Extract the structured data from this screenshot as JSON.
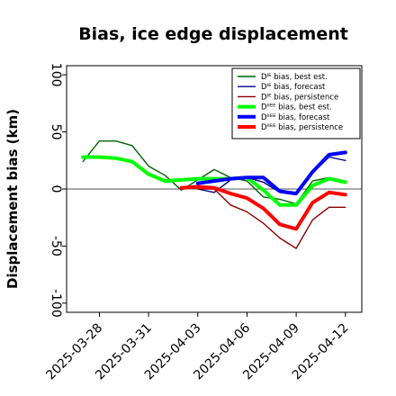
{
  "chart_data": {
    "type": "line",
    "title": "Bias, ice edge displacement",
    "xlabel": "",
    "ylabel": "Displacement bias (km)",
    "ylim": [
      -108,
      108
    ],
    "yticks": [
      -100,
      -50,
      0,
      50,
      100
    ],
    "x_range": [
      "2025-03-26",
      "2025-04-13"
    ],
    "xticks": [
      "2025-03-28",
      "2025-03-31",
      "2025-04-03",
      "2025-04-06",
      "2025-04-09",
      "2025-04-12"
    ],
    "highlight_tick": "2025-04-03",
    "highlight_color": "#228b22",
    "zero_line": true,
    "legend_position": "top-right",
    "series": [
      {
        "name": "Dᴵᴱ bias, best est.",
        "color": "#006400",
        "width": 1.4,
        "x": [
          "2025-03-27",
          "2025-03-28",
          "2025-03-29",
          "2025-03-30",
          "2025-03-31",
          "2025-04-01",
          "2025-04-02",
          "2025-04-03",
          "2025-04-04",
          "2025-04-05",
          "2025-04-06",
          "2025-04-07",
          "2025-04-08",
          "2025-04-09",
          "2025-04-10",
          "2025-04-11",
          "2025-04-12"
        ],
        "y": [
          24,
          42,
          42,
          38,
          20,
          12,
          -1,
          8,
          17,
          10,
          7,
          -7,
          -9,
          -13,
          7,
          10,
          7
        ]
      },
      {
        "name": "Dᴵᴱ bias, forecast",
        "color": "#00008b",
        "width": 1.4,
        "x": [
          "2025-04-03",
          "2025-04-04",
          "2025-04-05",
          "2025-04-06",
          "2025-04-07",
          "2025-04-08",
          "2025-04-09",
          "2025-04-10",
          "2025-04-11",
          "2025-04-12"
        ],
        "y": [
          0,
          -3,
          8,
          10,
          6,
          -3,
          -5,
          14,
          28,
          25
        ]
      },
      {
        "name": "Dᴵᴱ bias, persistence",
        "color": "#8b0000",
        "width": 1.4,
        "x": [
          "2025-04-03",
          "2025-04-04",
          "2025-04-05",
          "2025-04-06",
          "2025-04-07",
          "2025-04-08",
          "2025-04-09",
          "2025-04-10",
          "2025-04-11",
          "2025-04-12"
        ],
        "y": [
          0,
          0,
          -14,
          -20,
          -30,
          -43,
          -52,
          -27,
          -16,
          -16
        ]
      },
      {
        "name": "Dᴵᴵᴱᴱ bias, best est.",
        "color": "#00ff00",
        "width": 4,
        "x": [
          "2025-03-27",
          "2025-03-28",
          "2025-03-29",
          "2025-03-30",
          "2025-03-31",
          "2025-04-01",
          "2025-04-02",
          "2025-04-03",
          "2025-04-04",
          "2025-04-05",
          "2025-04-06",
          "2025-04-07",
          "2025-04-08",
          "2025-04-09",
          "2025-04-10",
          "2025-04-11",
          "2025-04-12"
        ],
        "y": [
          28,
          28,
          27,
          24,
          13,
          7,
          8,
          9,
          9,
          9,
          10,
          -1,
          -14,
          -14,
          3,
          9,
          6
        ]
      },
      {
        "name": "Dᴵᴵᴱᴱ bias, forecast",
        "color": "#0000ff",
        "width": 4,
        "x": [
          "2025-04-03",
          "2025-04-04",
          "2025-04-05",
          "2025-04-06",
          "2025-04-07",
          "2025-04-08",
          "2025-04-09",
          "2025-04-10",
          "2025-04-11",
          "2025-04-12"
        ],
        "y": [
          5,
          7,
          9,
          10,
          10,
          -2,
          -4,
          15,
          30,
          32
        ]
      },
      {
        "name": "Dᴵᴵᴱᴱ bias, persistence",
        "color": "#ff0000",
        "width": 4,
        "x": [
          "2025-04-02",
          "2025-04-03",
          "2025-04-04",
          "2025-04-05",
          "2025-04-06",
          "2025-04-07",
          "2025-04-08",
          "2025-04-09",
          "2025-04-10",
          "2025-04-11",
          "2025-04-12"
        ],
        "y": [
          1,
          2,
          1,
          -4,
          -8,
          -17,
          -31,
          -35,
          -12,
          -3,
          -5
        ]
      }
    ]
  }
}
